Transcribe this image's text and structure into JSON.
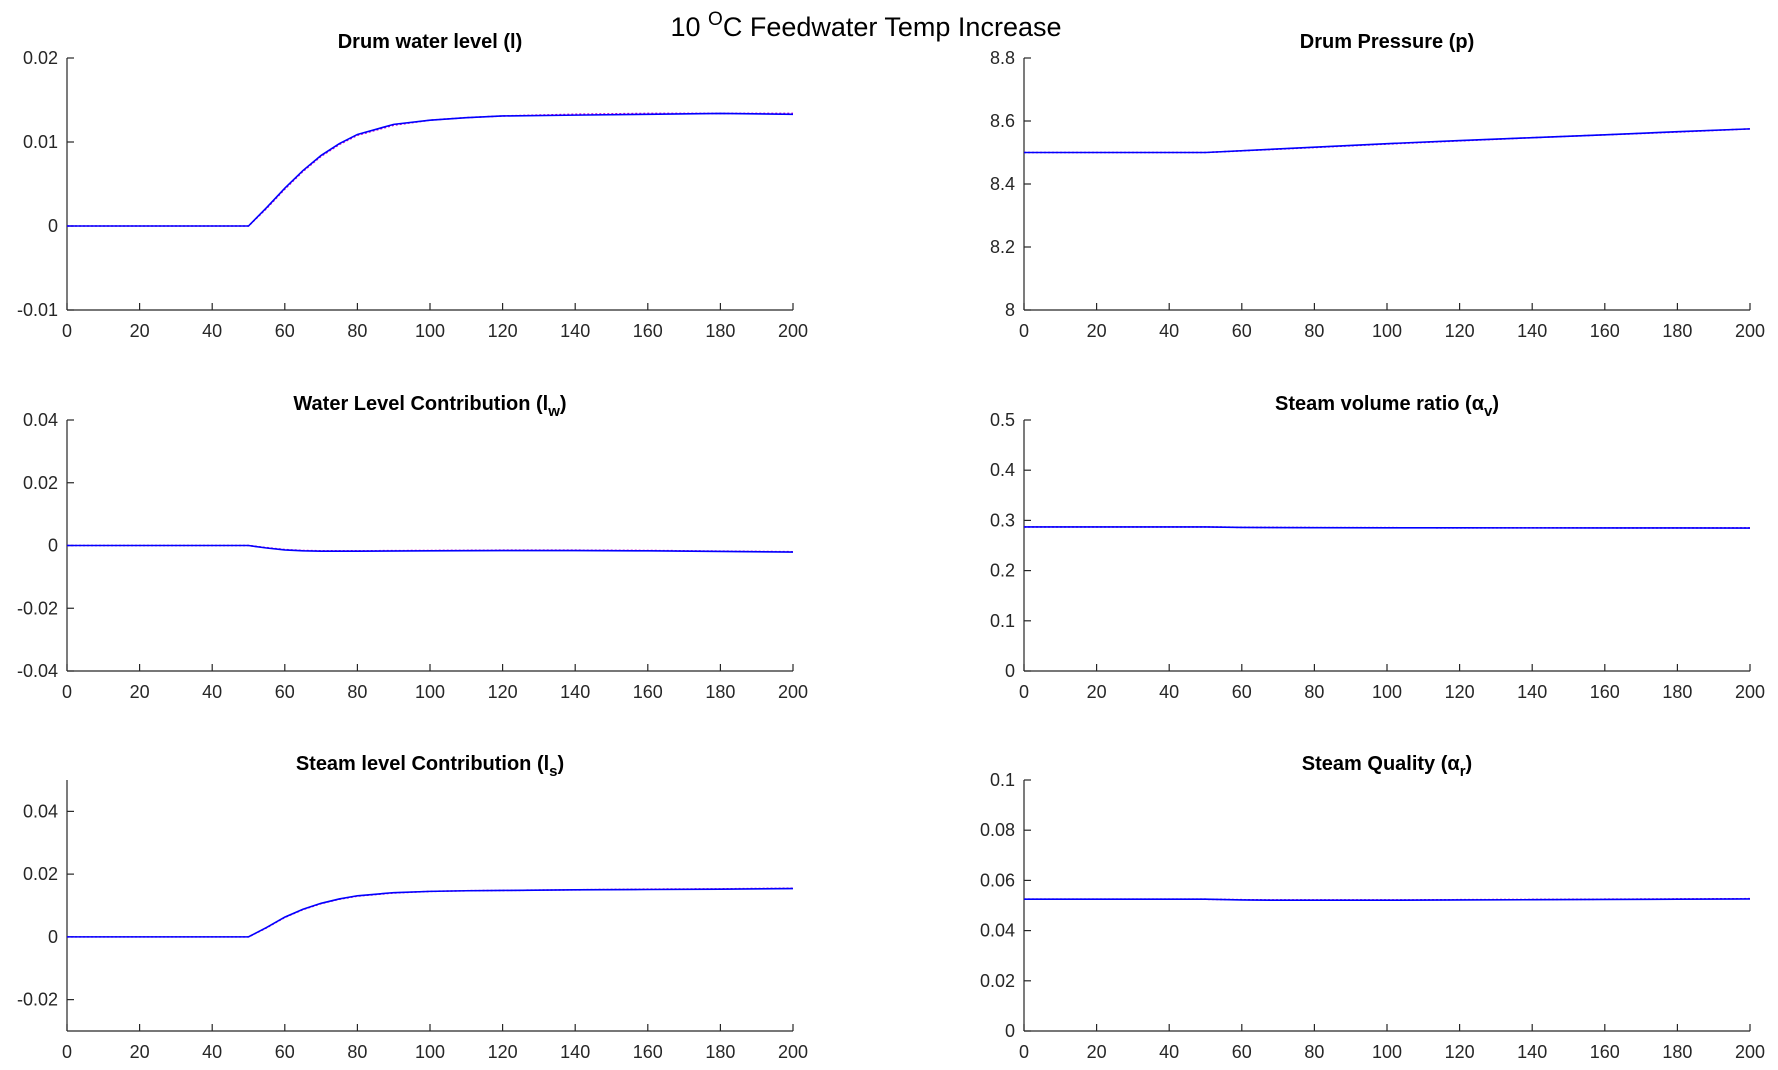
{
  "figure": {
    "title_prefix": "10 ",
    "title_sup": "O",
    "title_suffix": "C Feedwater Temp Increase"
  },
  "colors": {
    "primary": "#0000ff",
    "secondary": "#cc00cc",
    "axis": "#262626"
  },
  "chart_data": [
    {
      "type": "line",
      "title": {
        "main": "Drum water level (l)",
        "sub": "",
        "tail": ""
      },
      "xlim": [
        0,
        200
      ],
      "ylim": [
        -0.01,
        0.02
      ],
      "xticks": [
        0,
        20,
        40,
        60,
        80,
        100,
        120,
        140,
        160,
        180,
        200
      ],
      "yticks": [
        -0.01,
        0,
        0.01,
        0.02
      ],
      "ytick_labels": [
        "-0.01",
        "0",
        "0.01",
        "0.02"
      ],
      "grid": false,
      "series": [
        {
          "color": "#0000ff",
          "x": [
            0,
            50,
            55,
            60,
            65,
            70,
            75,
            80,
            90,
            100,
            110,
            120,
            140,
            160,
            180,
            200
          ],
          "y": [
            0,
            0,
            0.0022,
            0.0045,
            0.0066,
            0.0084,
            0.0098,
            0.0109,
            0.0121,
            0.0126,
            0.0129,
            0.0131,
            0.0132,
            0.0133,
            0.0134,
            0.0133
          ]
        },
        {
          "color": "#cc00cc",
          "x": [
            0,
            50,
            55,
            60,
            65,
            70,
            75,
            80,
            90,
            100,
            110,
            120,
            140,
            160,
            180,
            200
          ],
          "y": [
            0,
            0,
            0.0021,
            0.0044,
            0.0065,
            0.0083,
            0.0097,
            0.0108,
            0.012,
            0.0126,
            0.0129,
            0.0131,
            0.0133,
            0.0134,
            0.0134,
            0.0134
          ]
        }
      ]
    },
    {
      "type": "line",
      "title": {
        "main": "Drum Pressure (p)",
        "sub": "",
        "tail": ""
      },
      "xlim": [
        0,
        200
      ],
      "ylim": [
        8,
        8.8
      ],
      "xticks": [
        0,
        20,
        40,
        60,
        80,
        100,
        120,
        140,
        160,
        180,
        200
      ],
      "yticks": [
        8,
        8.2,
        8.4,
        8.6,
        8.8
      ],
      "ytick_labels": [
        "8",
        "8.2",
        "8.4",
        "8.6",
        "8.8"
      ],
      "grid": false,
      "series": [
        {
          "color": "#0000ff",
          "x": [
            0,
            50,
            80,
            100,
            120,
            140,
            160,
            180,
            200
          ],
          "y": [
            8.5,
            8.5,
            8.517,
            8.528,
            8.538,
            8.547,
            8.556,
            8.566,
            8.575
          ]
        },
        {
          "color": "#cc00cc",
          "x": [
            0,
            50,
            80,
            100,
            120,
            140,
            160,
            180,
            200
          ],
          "y": [
            8.5,
            8.5,
            8.516,
            8.527,
            8.537,
            8.547,
            8.556,
            8.565,
            8.575
          ]
        }
      ]
    },
    {
      "type": "line",
      "title": {
        "main": "Water Level Contribution (l",
        "sub": "w",
        "tail": ")"
      },
      "xlim": [
        0,
        200
      ],
      "ylim": [
        -0.04,
        0.04
      ],
      "xticks": [
        0,
        20,
        40,
        60,
        80,
        100,
        120,
        140,
        160,
        180,
        200
      ],
      "yticks": [
        -0.04,
        -0.02,
        0,
        0.02,
        0.04
      ],
      "ytick_labels": [
        "-0.04",
        "-0.02",
        "0",
        "0.02",
        "0.04"
      ],
      "grid": false,
      "series": [
        {
          "color": "#0000ff",
          "x": [
            0,
            50,
            55,
            60,
            65,
            70,
            80,
            100,
            120,
            140,
            160,
            180,
            200
          ],
          "y": [
            0,
            0,
            -0.0008,
            -0.0014,
            -0.0017,
            -0.0018,
            -0.0018,
            -0.0017,
            -0.0016,
            -0.0016,
            -0.0017,
            -0.0019,
            -0.0021
          ]
        },
        {
          "color": "#cc00cc",
          "x": [
            0,
            50,
            55,
            60,
            65,
            70,
            80,
            100,
            120,
            140,
            160,
            180,
            200
          ],
          "y": [
            0,
            0,
            -0.0007,
            -0.0013,
            -0.0016,
            -0.0017,
            -0.0017,
            -0.0016,
            -0.0015,
            -0.0015,
            -0.0016,
            -0.0018,
            -0.002
          ]
        }
      ]
    },
    {
      "type": "line",
      "title": {
        "main": "Steam volume ratio (α",
        "sub": "v",
        "tail": ")"
      },
      "xlim": [
        0,
        200
      ],
      "ylim": [
        0,
        0.5
      ],
      "xticks": [
        0,
        20,
        40,
        60,
        80,
        100,
        120,
        140,
        160,
        180,
        200
      ],
      "yticks": [
        0,
        0.1,
        0.2,
        0.3,
        0.4,
        0.5
      ],
      "ytick_labels": [
        "0",
        "0.1",
        "0.2",
        "0.3",
        "0.4",
        "0.5"
      ],
      "grid": false,
      "series": [
        {
          "color": "#0000ff",
          "x": [
            0,
            50,
            60,
            80,
            100,
            120,
            140,
            160,
            180,
            200
          ],
          "y": [
            0.287,
            0.287,
            0.286,
            0.2855,
            0.2853,
            0.2852,
            0.2851,
            0.285,
            0.2849,
            0.2848
          ]
        },
        {
          "color": "#cc00cc",
          "x": [
            0,
            50,
            60,
            80,
            100,
            120,
            140,
            160,
            180,
            200
          ],
          "y": [
            0.287,
            0.287,
            0.2862,
            0.2856,
            0.2854,
            0.2853,
            0.2852,
            0.2851,
            0.285,
            0.2849
          ]
        }
      ]
    },
    {
      "type": "line",
      "title": {
        "main": "Steam level Contribution (l",
        "sub": "s",
        "tail": ")"
      },
      "xlim": [
        0,
        200
      ],
      "ylim": [
        -0.03,
        0.05
      ],
      "xticks": [
        0,
        20,
        40,
        60,
        80,
        100,
        120,
        140,
        160,
        180,
        200
      ],
      "yticks": [
        -0.02,
        0,
        0.02,
        0.04
      ],
      "ytick_labels": [
        "-0.02",
        "0",
        "0.02",
        "0.04"
      ],
      "grid": false,
      "series": [
        {
          "color": "#0000ff",
          "x": [
            0,
            50,
            55,
            60,
            65,
            70,
            75,
            80,
            90,
            100,
            110,
            120,
            140,
            160,
            180,
            200
          ],
          "y": [
            0,
            0,
            0.003,
            0.0063,
            0.0088,
            0.0107,
            0.0121,
            0.0131,
            0.0141,
            0.0145,
            0.0147,
            0.0148,
            0.015,
            0.0151,
            0.0152,
            0.0154
          ]
        },
        {
          "color": "#cc00cc",
          "x": [
            0,
            50,
            55,
            60,
            65,
            70,
            75,
            80,
            90,
            100,
            110,
            120,
            140,
            160,
            180,
            200
          ],
          "y": [
            0,
            0,
            0.0029,
            0.0062,
            0.0087,
            0.0106,
            0.012,
            0.013,
            0.014,
            0.0145,
            0.0147,
            0.0148,
            0.015,
            0.0152,
            0.0153,
            0.0155
          ]
        }
      ]
    },
    {
      "type": "line",
      "title": {
        "main": "Steam Quality (α",
        "sub": "r",
        "tail": ")"
      },
      "xlim": [
        0,
        200
      ],
      "ylim": [
        0,
        0.1
      ],
      "xticks": [
        0,
        20,
        40,
        60,
        80,
        100,
        120,
        140,
        160,
        180,
        200
      ],
      "yticks": [
        0,
        0.02,
        0.04,
        0.06,
        0.08,
        0.1
      ],
      "ytick_labels": [
        "0",
        "0.02",
        "0.04",
        "0.06",
        "0.08",
        "0.1"
      ],
      "grid": false,
      "series": [
        {
          "color": "#0000ff",
          "x": [
            0,
            50,
            60,
            70,
            80,
            100,
            120,
            140,
            160,
            180,
            200
          ],
          "y": [
            0.0525,
            0.0525,
            0.0522,
            0.0521,
            0.0521,
            0.0521,
            0.0522,
            0.0523,
            0.0524,
            0.0525,
            0.0526
          ]
        },
        {
          "color": "#cc00cc",
          "x": [
            0,
            50,
            60,
            70,
            80,
            100,
            120,
            140,
            160,
            180,
            200
          ],
          "y": [
            0.0525,
            0.0525,
            0.0523,
            0.0522,
            0.0522,
            0.0522,
            0.0523,
            0.0524,
            0.0525,
            0.0526,
            0.0527
          ]
        }
      ]
    }
  ]
}
